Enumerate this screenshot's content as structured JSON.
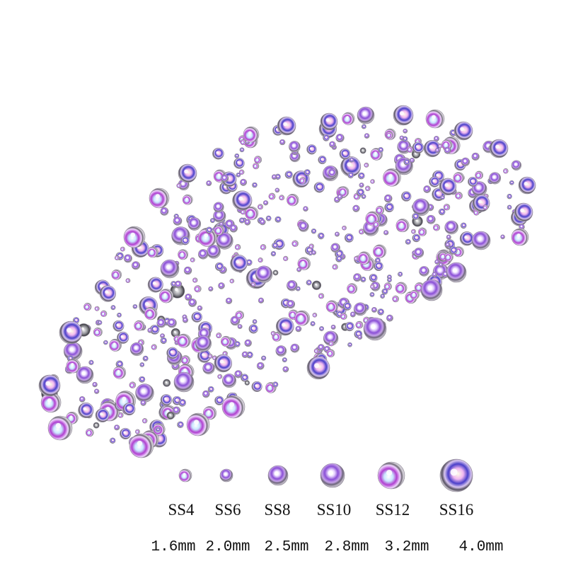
{
  "sizes": [
    {
      "code": "SS4",
      "mm": "1.6mm"
    },
    {
      "code": "SS6",
      "mm": "2.0mm"
    },
    {
      "code": "SS8",
      "mm": "2.5mm"
    },
    {
      "code": "SS10",
      "mm": "2.8mm"
    },
    {
      "code": "SS12",
      "mm": "3.2mm"
    },
    {
      "code": "SS16",
      "mm": "4.0mm"
    }
  ]
}
